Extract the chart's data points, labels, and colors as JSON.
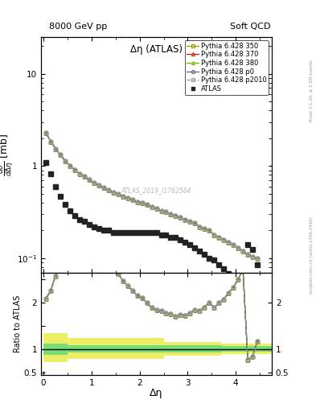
{
  "title_left": "8000 GeV pp",
  "title_right": "Soft QCD",
  "plot_title": "Δη (ATLAS)",
  "xlabel": "Δη",
  "ylabel_ratio": "Ratio to ATLAS",
  "watermark": "ATLAS_2019_I1762584",
  "right_label": "mcplots.cern.ch [arXiv:1306.3436]",
  "right_label2": "Rivet 3.1.10, ≥ 2.5M events",
  "atlas_x": [
    0.05,
    0.15,
    0.25,
    0.35,
    0.45,
    0.55,
    0.65,
    0.75,
    0.85,
    0.95,
    1.05,
    1.15,
    1.25,
    1.35,
    1.45,
    1.55,
    1.65,
    1.75,
    1.85,
    1.95,
    2.05,
    2.15,
    2.25,
    2.35,
    2.45,
    2.55,
    2.65,
    2.75,
    2.85,
    2.95,
    3.05,
    3.15,
    3.25,
    3.35,
    3.45,
    3.55,
    3.65,
    3.75,
    3.85,
    3.95,
    4.05,
    4.15,
    4.25,
    4.35,
    4.45
  ],
  "atlas_y": [
    1.1,
    0.82,
    0.6,
    0.47,
    0.38,
    0.33,
    0.29,
    0.26,
    0.25,
    0.23,
    0.22,
    0.21,
    0.2,
    0.2,
    0.19,
    0.19,
    0.19,
    0.19,
    0.19,
    0.19,
    0.19,
    0.19,
    0.19,
    0.19,
    0.18,
    0.18,
    0.17,
    0.17,
    0.16,
    0.15,
    0.14,
    0.13,
    0.12,
    0.11,
    0.1,
    0.095,
    0.085,
    0.077,
    0.068,
    0.06,
    0.052,
    0.044,
    0.14,
    0.125,
    0.085
  ],
  "mc_x": [
    0.05,
    0.15,
    0.25,
    0.35,
    0.45,
    0.55,
    0.65,
    0.75,
    0.85,
    0.95,
    1.05,
    1.15,
    1.25,
    1.35,
    1.45,
    1.55,
    1.65,
    1.75,
    1.85,
    1.95,
    2.05,
    2.15,
    2.25,
    2.35,
    2.45,
    2.55,
    2.65,
    2.75,
    2.85,
    2.95,
    3.05,
    3.15,
    3.25,
    3.35,
    3.45,
    3.55,
    3.65,
    3.75,
    3.85,
    3.95,
    4.05,
    4.15,
    4.25,
    4.35,
    4.45
  ],
  "mc_y": [
    2.3,
    1.85,
    1.55,
    1.32,
    1.14,
    1.01,
    0.91,
    0.83,
    0.77,
    0.71,
    0.66,
    0.62,
    0.58,
    0.55,
    0.52,
    0.5,
    0.47,
    0.45,
    0.43,
    0.41,
    0.4,
    0.38,
    0.36,
    0.35,
    0.33,
    0.32,
    0.3,
    0.29,
    0.28,
    0.26,
    0.25,
    0.24,
    0.22,
    0.21,
    0.2,
    0.18,
    0.17,
    0.16,
    0.15,
    0.14,
    0.13,
    0.12,
    0.11,
    0.105,
    0.1
  ],
  "colors": {
    "atlas": "#222222",
    "py350": "#999900",
    "py370": "#cc2200",
    "py380": "#66bb00",
    "py_p0": "#666677",
    "py_p2010": "#999999"
  },
  "ylim_main": [
    0.07,
    25
  ],
  "ylim_ratio": [
    0.45,
    2.65
  ],
  "xlim": [
    -0.05,
    4.75
  ]
}
